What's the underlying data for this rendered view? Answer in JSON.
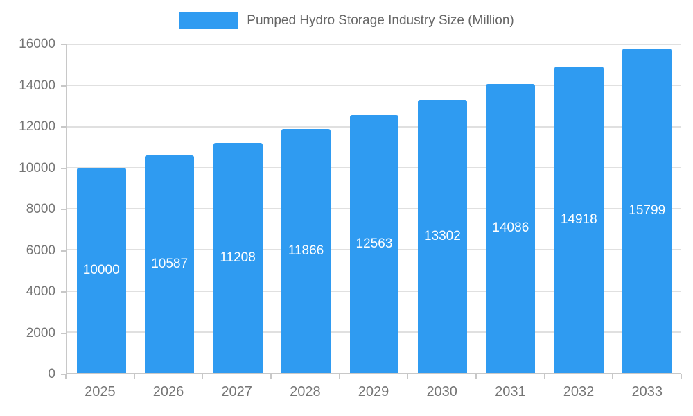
{
  "legend": {
    "label": "Pumped Hydro Storage Industry Size (Million)",
    "swatch_color": "#2F9BF1"
  },
  "chart_data": {
    "type": "bar",
    "title": "Pumped Hydro Storage Industry Size (Million)",
    "categories": [
      "2025",
      "2026",
      "2027",
      "2028",
      "2029",
      "2030",
      "2031",
      "2032",
      "2033"
    ],
    "values": [
      10000,
      10587,
      11208,
      11866,
      12563,
      13302,
      14086,
      14918,
      15799
    ],
    "xlabel": "",
    "ylabel": "",
    "ylim": [
      0,
      16000
    ],
    "yticks": [
      0,
      2000,
      4000,
      6000,
      8000,
      10000,
      12000,
      14000,
      16000
    ],
    "grid": true,
    "legend_position": "top",
    "bar_color": "#2F9BF1",
    "label_color": "#ffffff",
    "axis_text_color": "#757575"
  }
}
